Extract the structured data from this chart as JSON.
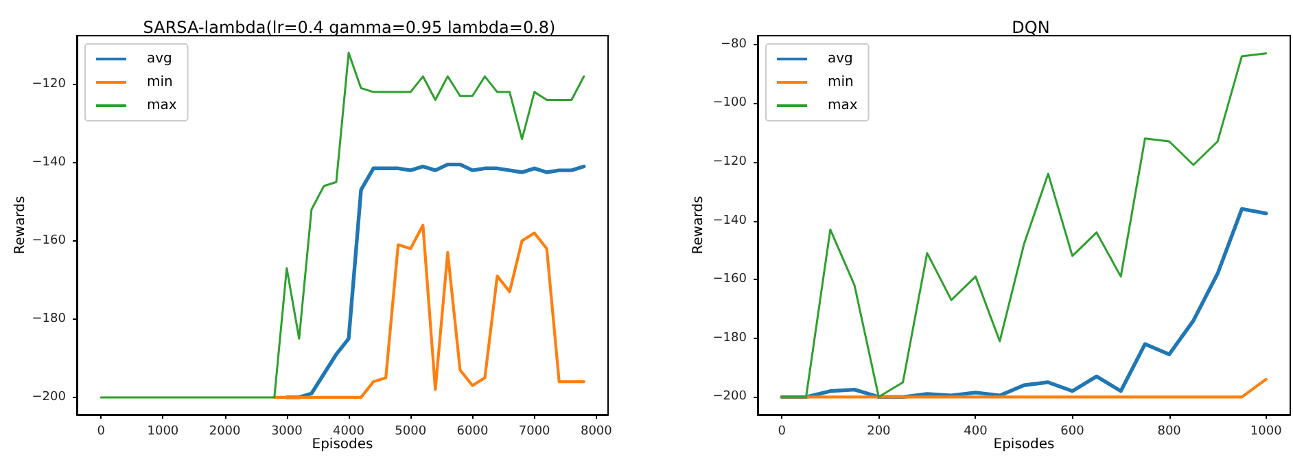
{
  "chart_data": [
    {
      "type": "line",
      "title": "SARSA-lambda(lr=0.4 gamma=0.95 lambda=0.8)",
      "xlabel": "Episodes",
      "ylabel": "Rewards",
      "x": [
        0,
        200,
        400,
        600,
        800,
        1000,
        1200,
        1400,
        1600,
        1800,
        2000,
        2200,
        2400,
        2600,
        2800,
        3000,
        3200,
        3400,
        3600,
        3800,
        4000,
        4200,
        4400,
        4600,
        4800,
        5000,
        5200,
        5400,
        5600,
        5800,
        6000,
        6200,
        6400,
        6600,
        6800,
        7000,
        7200,
        7400,
        7600,
        7800
      ],
      "series": [
        {
          "name": "avg",
          "color": "#1f77b4",
          "values": [
            null,
            null,
            null,
            null,
            null,
            null,
            null,
            null,
            null,
            null,
            null,
            null,
            null,
            null,
            null,
            -200,
            -200,
            -199,
            -194,
            -189,
            -185,
            -147,
            -141.5,
            -141.5,
            -141.5,
            -142,
            -141,
            -142,
            -140.5,
            -140.5,
            -142,
            -141.5,
            -141.5,
            -142,
            -142.5,
            -141.5,
            -142.5,
            -142,
            -142,
            -141
          ]
        },
        {
          "name": "min",
          "color": "#ff7f0e",
          "values": [
            null,
            null,
            null,
            null,
            null,
            null,
            null,
            null,
            null,
            null,
            null,
            null,
            null,
            null,
            -200,
            -200,
            -200,
            -200,
            -200,
            -200,
            -200,
            -200,
            -196,
            -195,
            -161,
            -162,
            -156,
            -198,
            -163,
            -193,
            -197,
            -195,
            -169,
            -173,
            -160,
            -158,
            -162,
            -196,
            -196,
            -196
          ]
        },
        {
          "name": "max",
          "color": "#2ca02c",
          "values": [
            -200,
            -200,
            -200,
            -200,
            -200,
            -200,
            -200,
            -200,
            -200,
            -200,
            -200,
            -200,
            -200,
            -200,
            -200,
            -167,
            -185,
            -152,
            -146,
            -145,
            -112,
            -121,
            -122,
            -122,
            -122,
            -122,
            -118,
            -124,
            -118,
            -123,
            -123,
            -118,
            -122,
            -122,
            -134,
            -122,
            -124,
            -124,
            -124,
            -118
          ]
        }
      ],
      "xlim": [
        -390,
        8190
      ],
      "xticks": [
        0,
        1000,
        2000,
        3000,
        4000,
        5000,
        6000,
        7000,
        8000
      ],
      "ylim": [
        -204.4,
        -107.6
      ],
      "yticks": [
        -200,
        -180,
        -160,
        -140,
        -120
      ],
      "grid": false,
      "legend": "top left",
      "marker": "none",
      "line_style": "solid"
    },
    {
      "type": "line",
      "title": "DQN",
      "xlabel": "Episodes",
      "ylabel": "Rewards",
      "x": [
        0,
        50,
        100,
        150,
        200,
        250,
        300,
        350,
        400,
        450,
        500,
        550,
        600,
        650,
        700,
        750,
        800,
        850,
        900,
        950,
        1000
      ],
      "series": [
        {
          "name": "avg",
          "color": "#1f77b4",
          "values": [
            -200,
            -200,
            -198,
            -197.5,
            -200,
            -200,
            -199,
            -199.5,
            -198.5,
            -199.5,
            -196,
            -195,
            -198,
            -193,
            -198,
            -182,
            -185.5,
            -174,
            -158,
            -136,
            -137.5
          ]
        },
        {
          "name": "min",
          "color": "#ff7f0e",
          "values": [
            -200,
            -200,
            -200,
            -200,
            -200,
            -200,
            -200,
            -200,
            -200,
            -200,
            -200,
            -200,
            -200,
            -200,
            -200,
            -200,
            -200,
            -200,
            -200,
            -200,
            -194
          ]
        },
        {
          "name": "max",
          "color": "#2ca02c",
          "values": [
            -200,
            -200,
            -143,
            -162,
            -200,
            -195,
            -151,
            -167,
            -159,
            -181,
            -148,
            -124,
            -152,
            -144,
            -159,
            -112,
            -113,
            -121,
            -113,
            -84,
            -83
          ]
        }
      ],
      "xlim": [
        -50,
        1050
      ],
      "xticks": [
        0,
        200,
        400,
        600,
        800,
        1000
      ],
      "ylim": [
        -206,
        -77
      ],
      "yticks": [
        -200,
        -180,
        -160,
        -140,
        -120,
        -100,
        -80
      ],
      "grid": false,
      "legend": "top left",
      "marker": "none",
      "line_style": "solid"
    }
  ]
}
